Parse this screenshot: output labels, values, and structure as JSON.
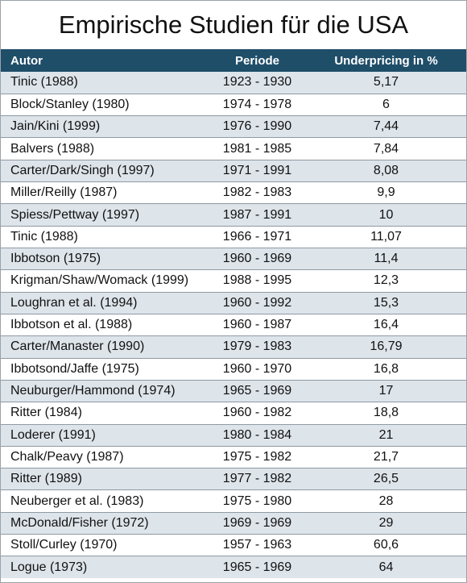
{
  "title": "Empirische Studien für die USA",
  "table": {
    "headers": [
      "Autor",
      "Periode",
      "Underpricing in %"
    ],
    "rows": [
      {
        "author": "Tinic (1988)",
        "period": "1923  -  1930",
        "value": "5,17"
      },
      {
        "author": "Block/Stanley (1980)",
        "period": "1974  -  1978",
        "value": "6"
      },
      {
        "author": "Jain/Kini (1999)",
        "period": "1976  -  1990",
        "value": "7,44"
      },
      {
        "author": "Balvers (1988)",
        "period": "1981  -  1985",
        "value": "7,84"
      },
      {
        "author": "Carter/Dark/Singh (1997)",
        "period": "1971  -  1991",
        "value": "8,08"
      },
      {
        "author": "Miller/Reilly (1987)",
        "period": "1982  -  1983",
        "value": "9,9"
      },
      {
        "author": "Spiess/Pettway (1997)",
        "period": "1987  -  1991",
        "value": "10"
      },
      {
        "author": "Tinic (1988)",
        "period": "1966  -  1971",
        "value": "11,07"
      },
      {
        "author": "Ibbotson (1975)",
        "period": "1960  -  1969",
        "value": "11,4"
      },
      {
        "author": "Krigman/Shaw/Womack (1999)",
        "period": "1988  -  1995",
        "value": "12,3"
      },
      {
        "author": "Loughran et al. (1994)",
        "period": "1960  -  1992",
        "value": "15,3"
      },
      {
        "author": "Ibbotson et al. (1988)",
        "period": "1960  -  1987",
        "value": "16,4"
      },
      {
        "author": "Carter/Manaster (1990)",
        "period": "1979  -  1983",
        "value": "16,79"
      },
      {
        "author": "Ibbotsond/Jaffe (1975)",
        "period": "1960  -  1970",
        "value": "16,8"
      },
      {
        "author": "Neuburger/Hammond (1974)",
        "period": "1965  -  1969",
        "value": "17"
      },
      {
        "author": "Ritter (1984)",
        "period": "1960  -  1982",
        "value": "18,8"
      },
      {
        "author": "Loderer (1991)",
        "period": "1980  -  1984",
        "value": "21"
      },
      {
        "author": "Chalk/Peavy (1987)",
        "period": "1975  -  1982",
        "value": "21,7"
      },
      {
        "author": "Ritter (1989)",
        "period": "1977  -  1982",
        "value": "26,5"
      },
      {
        "author": "Neuberger et al. (1983)",
        "period": "1975  -  1980",
        "value": "28"
      },
      {
        "author": "McDonald/Fisher (1972)",
        "period": "1969  -  1969",
        "value": "29"
      },
      {
        "author": "Stoll/Curley (1970)",
        "period": "1957  -  1963",
        "value": "60,6"
      },
      {
        "author": "Logue (1973)",
        "period": "1965  -  1969",
        "value": "64"
      }
    ]
  }
}
